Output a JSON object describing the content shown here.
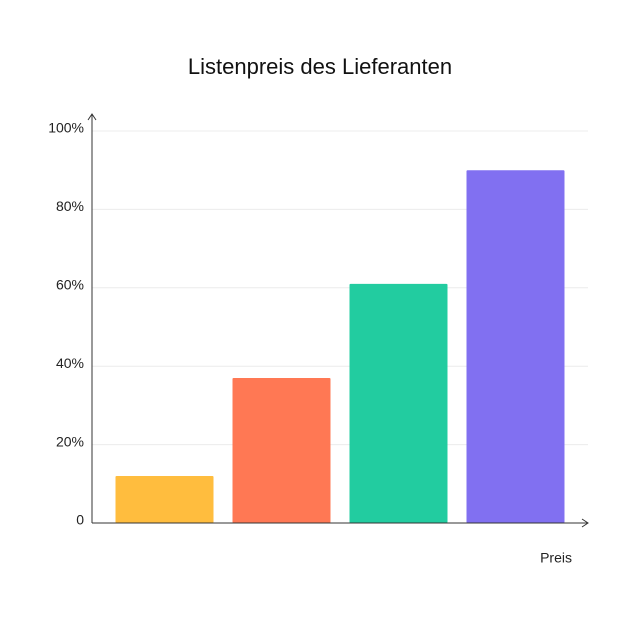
{
  "chart_data": {
    "type": "bar",
    "title": "Listenpreis des Lieferanten",
    "x_label": "Preis",
    "categories": [
      null,
      null,
      null,
      null
    ],
    "values": [
      12,
      37,
      61,
      90
    ],
    "colors": [
      "#ffbd3e",
      "#ff7854",
      "#22cca0",
      "#8170f1"
    ],
    "ylim": [
      0,
      100
    ],
    "yticks": [
      0,
      {
        "value": 20,
        "label": "20%"
      },
      {
        "value": 40,
        "label": "40%"
      },
      {
        "value": 60,
        "label": "60%"
      },
      {
        "value": 80,
        "label": "80%"
      },
      {
        "value": 100,
        "label": "100%"
      }
    ],
    "grid": true
  }
}
